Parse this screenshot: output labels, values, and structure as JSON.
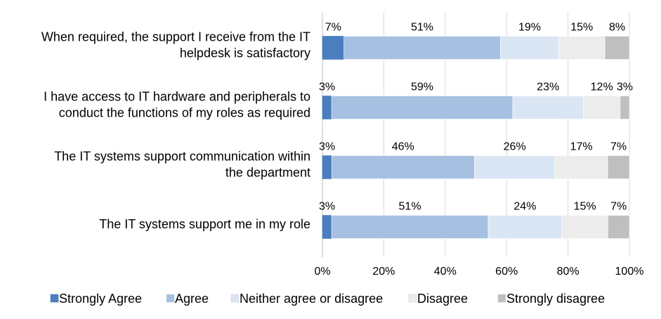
{
  "chart_data": {
    "type": "bar",
    "orientation": "horizontal",
    "stacked": "percent",
    "categories": [
      [
        "When required, the support I receive from the IT",
        "helpdesk is satisfactory"
      ],
      [
        "I have access to IT hardware and peripherals to",
        "conduct the functions of my roles as required"
      ],
      [
        "The IT systems support communication within",
        "the department"
      ],
      [
        "The IT systems support me in my role"
      ]
    ],
    "series": [
      {
        "name": "Strongly Agree",
        "color": "#4a7ebf",
        "values": [
          7,
          3,
          3,
          3
        ],
        "labels": [
          "7%",
          "3%",
          "3%",
          "3%"
        ]
      },
      {
        "name": "Agree",
        "color": "#a5c0e1",
        "values": [
          51,
          59,
          46,
          51
        ],
        "labels": [
          "51%",
          "59%",
          "46%",
          "51%"
        ]
      },
      {
        "name": "Neither agree or disagree",
        "color": "#dbe6f4",
        "values": [
          19,
          23,
          26,
          24
        ],
        "labels": [
          "19%",
          "23%",
          "26%",
          "24%"
        ]
      },
      {
        "name": "Disagree",
        "color": "#ececec",
        "values": [
          15,
          12,
          17,
          15
        ],
        "labels": [
          "15%",
          "12%",
          "17%",
          "15%"
        ]
      },
      {
        "name": "Strongly disagree",
        "color": "#bfbfbf",
        "values": [
          8,
          3,
          7,
          7
        ],
        "labels": [
          "8%",
          "3%",
          "7%",
          "7%"
        ]
      }
    ],
    "xticks": [
      "0%",
      "20%",
      "40%",
      "60%",
      "80%",
      "100%"
    ],
    "xlim": [
      0,
      100
    ],
    "grid": true,
    "legend_position": "bottom"
  }
}
